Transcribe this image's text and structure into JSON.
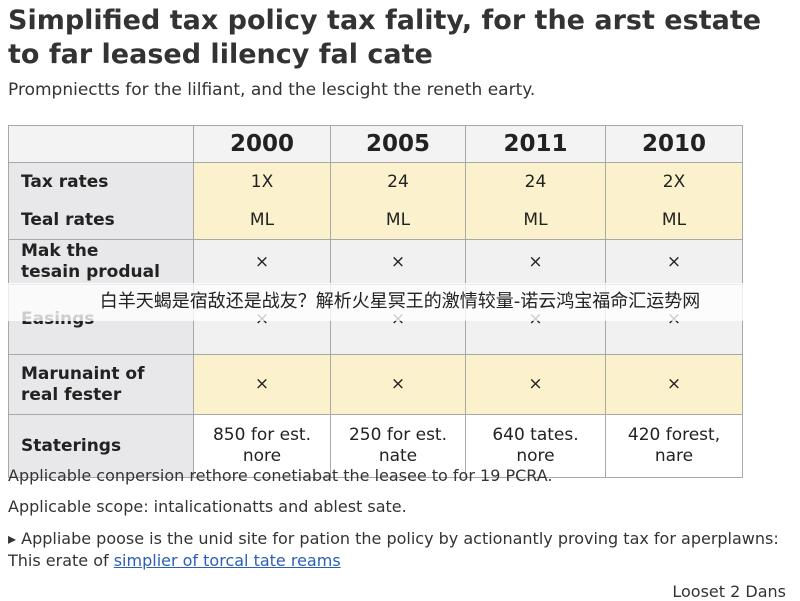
{
  "header": {
    "title": "Simplified tax policy tax fality, for the arst estate to far leased lilency fal cate",
    "subtitle": "Prompniectts for the lilfiant, and the lescight the reneth earty."
  },
  "table": {
    "columns": [
      "2000",
      "2005",
      "2011",
      "2010"
    ],
    "rows": [
      {
        "label": "Tax rates",
        "cells": [
          "1X",
          "24",
          "24",
          "2X"
        ]
      },
      {
        "label": "Teal rates",
        "cells": [
          "ML",
          "ML",
          "ML",
          "ML"
        ]
      },
      {
        "label": "Mak the\ntesain produal",
        "cells": [
          "×",
          "×",
          "×",
          "×"
        ]
      },
      {
        "label": "Easings",
        "cells": [
          "×",
          "×",
          "×",
          "×"
        ]
      },
      {
        "label": "Marunaint of\nreal fester",
        "cells": [
          "×",
          "×",
          "×",
          "×"
        ]
      },
      {
        "label": "Staterings",
        "cells": [
          "850 for est.\nnore",
          "250 for est.\nnate",
          "640 tates.\nnore",
          "420 forest,\nnare"
        ]
      }
    ]
  },
  "banner": "白羊天蝎是宿敌还是战友？解析火星冥王的激情较量-诺云鸿宝福命汇运势网",
  "notes": [
    "Applicable conpersion rethore conetiabat the leasee to for 19 PCRA.",
    "Applicable scope: intalicationatts and ablest sate."
  ],
  "bullet": {
    "text": "Appliabe poose is the unid site for pation the policy by actionantly proving tax for aperplawns: This erate of ",
    "link": "simplier of torcal tate reams"
  },
  "footer": "Looset 2 Dans"
}
